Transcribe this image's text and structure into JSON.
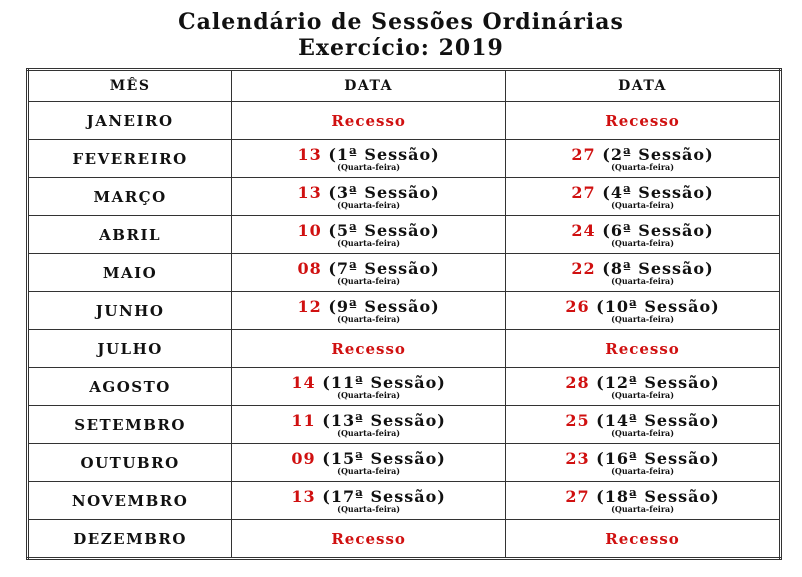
{
  "title_line1": "Calendário de Sessões Ordinárias",
  "title_line2": "Exercício: 2019",
  "headers": [
    "MÊS",
    "DATA",
    "DATA"
  ],
  "colors": {
    "day": "#d01010",
    "recess": "#d01010",
    "text": "#111111"
  },
  "rows": [
    {
      "month": "JANEIRO",
      "cells": [
        {
          "recess": "Recesso"
        },
        {
          "recess": "Recesso"
        }
      ]
    },
    {
      "month": "FEVEREIRO",
      "cells": [
        {
          "day": "13",
          "session": " (1ª Sessão)",
          "weekday": "(Quarta-feira)"
        },
        {
          "day": "27",
          "session": " (2ª Sessão)",
          "weekday": "(Quarta-feira)"
        }
      ]
    },
    {
      "month": "MARÇO",
      "cells": [
        {
          "day": "13",
          "session": " (3ª Sessão)",
          "weekday": "(Quarta-feira)"
        },
        {
          "day": "27",
          "session": " (4ª Sessão)",
          "weekday": "(Quarta-feira)"
        }
      ]
    },
    {
      "month": "ABRIL",
      "cells": [
        {
          "day": "10",
          "session": " (5ª Sessão)",
          "weekday": "(Quarta-feira)"
        },
        {
          "day": "24",
          "session": " (6ª Sessão)",
          "weekday": "(Quarta-feira)"
        }
      ]
    },
    {
      "month": "MAIO",
      "cells": [
        {
          "day": "08",
          "session": " (7ª Sessão)",
          "weekday": "(Quarta-feira)"
        },
        {
          "day": "22",
          "session": " (8ª Sessão)",
          "weekday": "(Quarta-feira)"
        }
      ]
    },
    {
      "month": "JUNHO",
      "cells": [
        {
          "day": "12",
          "session": " (9ª Sessão)",
          "weekday": "(Quarta-feira)"
        },
        {
          "day": "26",
          "session": " (10ª Sessão)",
          "weekday": "(Quarta-feira)"
        }
      ]
    },
    {
      "month": "JULHO",
      "cells": [
        {
          "recess": "Recesso"
        },
        {
          "recess": "Recesso"
        }
      ]
    },
    {
      "month": "AGOSTO",
      "cells": [
        {
          "day": "14",
          "session": " (11ª Sessão)",
          "weekday": "(Quarta-feira)"
        },
        {
          "day": "28",
          "session": " (12ª Sessão)",
          "weekday": "(Quarta-feira)"
        }
      ]
    },
    {
      "month": "SETEMBRO",
      "cells": [
        {
          "day": "11",
          "session": " (13ª Sessão)",
          "weekday": "(Quarta-feira)"
        },
        {
          "day": "25",
          "session": " (14ª Sessão)",
          "weekday": "(Quarta-feira)"
        }
      ]
    },
    {
      "month": "OUTUBRO",
      "cells": [
        {
          "day": "09",
          "session": " (15ª Sessão)",
          "weekday": "(Quarta-feira)"
        },
        {
          "day": "23",
          "session": " (16ª Sessão)",
          "weekday": "(Quarta-feira)"
        }
      ]
    },
    {
      "month": "NOVEMBRO",
      "cells": [
        {
          "day": "13",
          "session": " (17ª Sessão)",
          "weekday": "(Quarta-feira)"
        },
        {
          "day": "27",
          "session": " (18ª Sessão)",
          "weekday": "(Quarta-feira)"
        }
      ]
    },
    {
      "month": "DEZEMBRO",
      "cells": [
        {
          "recess": "Recesso"
        },
        {
          "recess": "Recesso"
        }
      ]
    }
  ]
}
